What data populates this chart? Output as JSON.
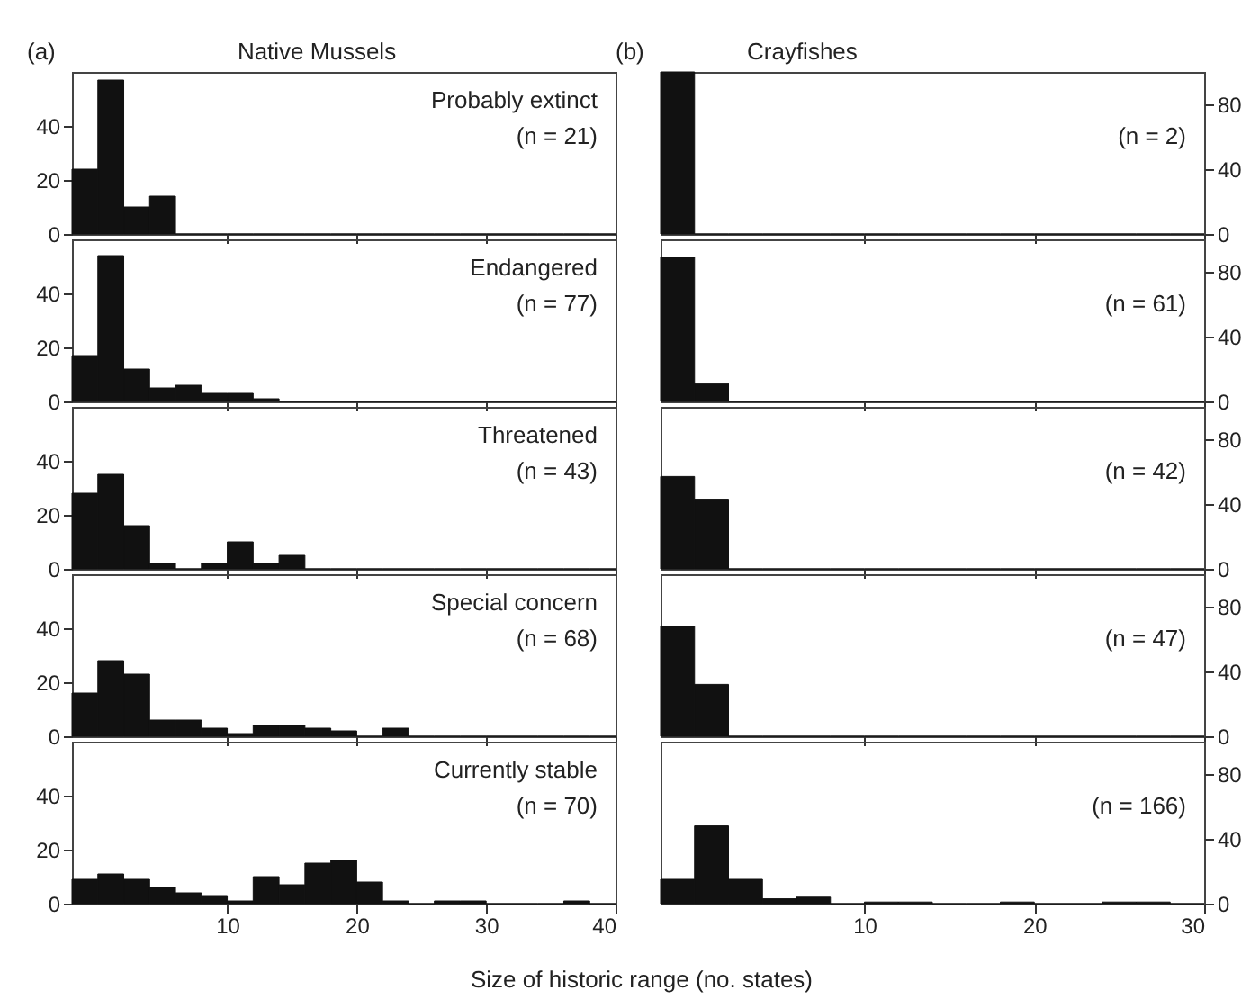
{
  "chart_data": [
    {
      "type": "histogram",
      "title": "(a)",
      "subtitle": "Native Mussels",
      "annotations": [
        "Probably extinct",
        "(n = 21)"
      ],
      "color": "#111111",
      "bins": [
        -2,
        0,
        2,
        4,
        6,
        8,
        10,
        12,
        14,
        16,
        18,
        20,
        22,
        24,
        26,
        28,
        30,
        32,
        34,
        36,
        38,
        40
      ],
      "values": [
        24,
        57,
        10,
        14,
        0,
        0,
        0,
        0,
        0,
        0,
        0,
        0,
        0,
        0,
        0,
        0,
        0,
        0,
        0,
        0,
        0
      ],
      "xlim": [
        -2,
        40
      ],
      "xticks": [
        10,
        20,
        30,
        40
      ],
      "ylim": [
        0,
        60
      ],
      "yticks": [
        0,
        20,
        40
      ],
      "tick_labels": "y"
    },
    {
      "type": "histogram",
      "annotations": [
        "Endangered",
        "(n = 77)"
      ],
      "color": "#111111",
      "bins": [
        -2,
        0,
        2,
        4,
        6,
        8,
        10,
        12,
        14,
        16,
        18,
        20,
        22,
        24,
        26,
        28,
        30,
        32,
        34,
        36,
        38,
        40
      ],
      "values": [
        17,
        54,
        12,
        5,
        6,
        3,
        3,
        1,
        0,
        0,
        0,
        0,
        0,
        0,
        0,
        0,
        0,
        0,
        0,
        0,
        0
      ],
      "xlim": [
        -2,
        40
      ],
      "xticks": [
        10,
        20,
        30,
        40
      ],
      "ylim": [
        0,
        60
      ],
      "yticks": [
        0,
        20,
        40
      ],
      "tick_labels": "y"
    },
    {
      "type": "histogram",
      "annotations": [
        "Threatened",
        "(n = 43)"
      ],
      "color": "#111111",
      "bins": [
        -2,
        0,
        2,
        4,
        6,
        8,
        10,
        12,
        14,
        16,
        18,
        20,
        22,
        24,
        26,
        28,
        30,
        32,
        34,
        36,
        38,
        40
      ],
      "values": [
        28,
        35,
        16,
        2,
        0,
        2,
        10,
        2,
        5,
        0,
        0,
        0,
        0,
        0,
        0,
        0,
        0,
        0,
        0,
        0,
        0
      ],
      "xlim": [
        -2,
        40
      ],
      "xticks": [
        10,
        20,
        30,
        40
      ],
      "ylim": [
        0,
        60
      ],
      "yticks": [
        0,
        20,
        40
      ],
      "tick_labels": "y"
    },
    {
      "type": "histogram",
      "annotations": [
        "Special concern",
        "(n = 68)"
      ],
      "color": "#111111",
      "bins": [
        -2,
        0,
        2,
        4,
        6,
        8,
        10,
        12,
        14,
        16,
        18,
        20,
        22,
        24,
        26,
        28,
        30,
        32,
        34,
        36,
        38,
        40
      ],
      "values": [
        16,
        28,
        23,
        6,
        6,
        3,
        1,
        4,
        4,
        3,
        2,
        0,
        3,
        0,
        0,
        0,
        0,
        0,
        0,
        0,
        0
      ],
      "xlim": [
        -2,
        40
      ],
      "xticks": [
        10,
        20,
        30,
        40
      ],
      "ylim": [
        0,
        60
      ],
      "yticks": [
        0,
        20,
        40
      ],
      "tick_labels": "y"
    },
    {
      "type": "histogram",
      "annotations": [
        "Currently stable",
        "(n = 70)"
      ],
      "xlabel": "Size of historic range (no. states)",
      "color": "#111111",
      "bins": [
        -2,
        0,
        2,
        4,
        6,
        8,
        10,
        12,
        14,
        16,
        18,
        20,
        22,
        24,
        26,
        28,
        30,
        32,
        34,
        36,
        38,
        40
      ],
      "values": [
        9,
        11,
        9,
        6,
        4,
        3,
        1,
        10,
        7,
        15,
        16,
        8,
        1,
        0,
        1,
        1,
        0,
        0,
        0,
        1,
        0
      ],
      "xlim": [
        -2,
        40
      ],
      "xticks": [
        10,
        20,
        30,
        40
      ],
      "ylim": [
        0,
        60
      ],
      "yticks": [
        0,
        20,
        40
      ]
    },
    {
      "type": "histogram",
      "title": "(b)",
      "subtitle": "Crayfishes",
      "annotations": [
        "(n = 2)"
      ],
      "color": "#111111",
      "bins": [
        -2,
        0,
        2,
        4,
        6,
        8,
        10,
        12,
        14,
        16,
        18,
        20,
        22,
        24,
        26,
        28,
        30
      ],
      "values": [
        100,
        0,
        0,
        0,
        0,
        0,
        0,
        0,
        0,
        0,
        0,
        0,
        0,
        0,
        0,
        0
      ],
      "xlim": [
        -2,
        30
      ],
      "xticks": [
        10,
        20,
        30
      ],
      "ylim": [
        0,
        100
      ],
      "yticks": [
        0,
        40,
        80
      ],
      "tick_labels": "y"
    },
    {
      "type": "histogram",
      "annotations": [
        "(n = 61)"
      ],
      "color": "#111111",
      "bins": [
        -2,
        0,
        2,
        4,
        6,
        8,
        10,
        12,
        14,
        16,
        18,
        20,
        22,
        24,
        26,
        28,
        30
      ],
      "values": [
        89,
        11,
        0,
        0,
        0,
        0,
        0,
        0,
        0,
        0,
        0,
        0,
        0,
        0,
        0,
        0
      ],
      "xlim": [
        -2,
        30
      ],
      "xticks": [
        10,
        20,
        30
      ],
      "ylim": [
        0,
        100
      ],
      "yticks": [
        0,
        40,
        80
      ],
      "tick_labels": "y"
    },
    {
      "type": "histogram",
      "annotations": [
        "(n = 42)"
      ],
      "color": "#111111",
      "bins": [
        -2,
        0,
        2,
        4,
        6,
        8,
        10,
        12,
        14,
        16,
        18,
        20,
        22,
        24,
        26,
        28,
        30
      ],
      "values": [
        57,
        43,
        0,
        0,
        0,
        0,
        0,
        0,
        0,
        0,
        0,
        0,
        0,
        0,
        0,
        0
      ],
      "xlim": [
        -2,
        30
      ],
      "xticks": [
        10,
        20,
        30
      ],
      "ylim": [
        0,
        100
      ],
      "yticks": [
        0,
        40,
        80
      ],
      "tick_labels": "y"
    },
    {
      "type": "histogram",
      "annotations": [
        "(n = 47)"
      ],
      "color": "#111111",
      "bins": [
        -2,
        0,
        2,
        4,
        6,
        8,
        10,
        12,
        14,
        16,
        18,
        20,
        22,
        24,
        26,
        28,
        30
      ],
      "values": [
        68,
        32,
        0,
        0,
        0,
        0,
        0,
        0,
        0,
        0,
        0,
        0,
        0,
        0,
        0,
        0
      ],
      "xlim": [
        -2,
        30
      ],
      "xticks": [
        10,
        20,
        30
      ],
      "ylim": [
        0,
        100
      ],
      "yticks": [
        0,
        40,
        80
      ],
      "tick_labels": "y"
    },
    {
      "type": "histogram",
      "annotations": [
        "(n = 166)"
      ],
      "color": "#111111",
      "bins": [
        -2,
        0,
        2,
        4,
        6,
        8,
        10,
        12,
        14,
        16,
        18,
        20,
        22,
        24,
        26,
        28,
        30
      ],
      "values": [
        15,
        48,
        15,
        3,
        4,
        0,
        1,
        1,
        0,
        0,
        1,
        0,
        0,
        1,
        1,
        0
      ],
      "xlim": [
        -2,
        30
      ],
      "xticks": [
        10,
        20,
        30
      ],
      "ylim": [
        0,
        100
      ],
      "yticks": [
        0,
        40,
        80
      ]
    }
  ]
}
